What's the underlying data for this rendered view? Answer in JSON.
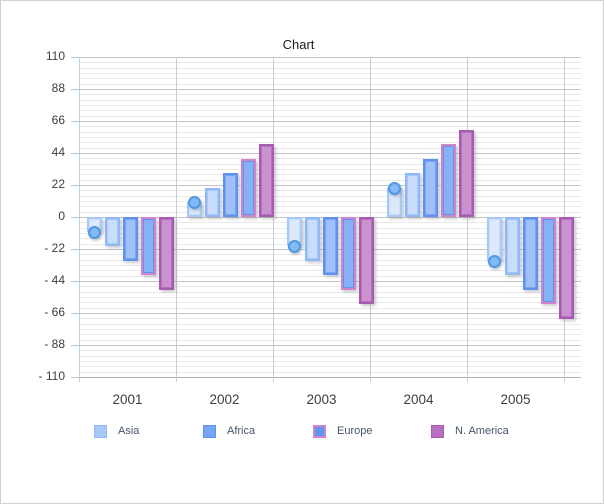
{
  "chart_data": {
    "type": "bar",
    "title": "Chart",
    "categories": [
      "2001",
      "2002",
      "2003",
      "2004",
      "2005"
    ],
    "series": [
      {
        "name": "",
        "in_legend": false,
        "style": "bar-with-circle-marker",
        "values": [
          -10,
          10,
          -20,
          20,
          -30
        ],
        "fill": "#CADEFB",
        "border": "#A5C9F8",
        "inner": "#DCE9FD",
        "marker_fill": "#83BAF5",
        "marker_border": "#4D99E4"
      },
      {
        "name": "Asia",
        "in_legend": true,
        "style": "bar",
        "values": [
          -20,
          20,
          -30,
          30,
          -40
        ],
        "fill": "#A8C9F8",
        "border": "#90B8F6",
        "inner": "#C9DCFB"
      },
      {
        "name": "Africa",
        "in_legend": true,
        "style": "bar",
        "values": [
          -30,
          30,
          -40,
          40,
          -50
        ],
        "fill": "#77A5F3",
        "border": "#5E92EE",
        "inner": "#9FC0F8"
      },
      {
        "name": "Europe",
        "in_legend": true,
        "style": "bar",
        "values": [
          -40,
          40,
          -50,
          50,
          -60
        ],
        "fill": "#5E95F0",
        "border": "#CF84CB",
        "inner": "#87B0F5"
      },
      {
        "name": "N. America",
        "in_legend": true,
        "style": "bar",
        "values": [
          -50,
          50,
          -60,
          60,
          -70
        ],
        "fill": "#B76FBF",
        "border": "#A75CB2",
        "inner": "#CA92CF"
      }
    ],
    "ylim": [
      -110,
      110
    ],
    "y_tick_interval": 22,
    "y_tick_labels": [
      "110",
      "88",
      "66",
      "44",
      "22",
      "0",
      "- 22",
      "- 44",
      "- 66",
      "- 88",
      "- 110"
    ],
    "grid": {
      "horizontal_major": true,
      "horizontal_minor": true,
      "vertical_category_lines": true
    },
    "legend_position": "bottom"
  }
}
